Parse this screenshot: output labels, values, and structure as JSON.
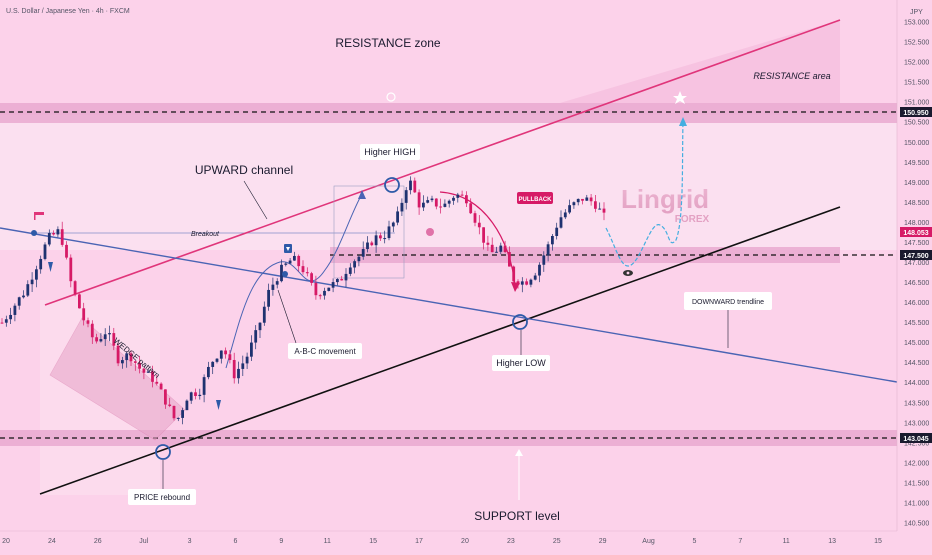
{
  "header": {
    "symbol_title": "U.S. Dollar / Japanese Yen · 4h · FXCM",
    "currency": "JPY"
  },
  "colors": {
    "background": "#fcd2ea",
    "upper_band": "#fbe4f1",
    "zone_band": "#e9a9d0",
    "resistance_line": "#e0357a",
    "support_line": "#111111",
    "trendline": "#4a64b4",
    "candle_up": "#1f3270",
    "candle_down": "#d61a66",
    "circle": "#2e5aa8",
    "projection": "#44aee0",
    "price_tag": "#1a1a2e",
    "current_price_tag": "#d61a66"
  },
  "annotations": {
    "resistance_zone": "RESISTANCE zone",
    "resistance_area": "RESISTANCE area",
    "upward_channel": "UPWARD channel",
    "breakout": "Breakout",
    "higher_high": "Higher HIGH",
    "pullback": "PULLBACK",
    "abc_movement": "A-B-C movement",
    "wedge_pattern": "WEDGE pattern",
    "downward_trendline": "DOWNWARD trendline",
    "higher_low": "Higher LOW",
    "price_rebound": "PRICE rebound",
    "support_level": "SUPPORT level",
    "watermark_main": "Lingrid",
    "watermark_sub": "FOREX"
  },
  "price_tags": [
    {
      "value": "150.950",
      "kind": "level"
    },
    {
      "value": "148.053",
      "kind": "current"
    },
    {
      "value": "147.500",
      "kind": "level"
    },
    {
      "value": "143.045",
      "kind": "level"
    }
  ],
  "chart_data": {
    "type": "line",
    "description_series": "USD/JPY 4h price path (approximate closes)",
    "x_ticks": [
      "20",
      "24",
      "26",
      "Jul",
      "3",
      "6",
      "9",
      "11",
      "15",
      "17",
      "20",
      "23",
      "25",
      "29",
      "Aug",
      "5",
      "7",
      "11",
      "13",
      "15"
    ],
    "y_ticks": [
      "153.000",
      "152.500",
      "152.000",
      "151.500",
      "151.000",
      "150.500",
      "150.000",
      "149.500",
      "149.000",
      "148.500",
      "148.000",
      "147.500",
      "147.000",
      "146.500",
      "146.000",
      "145.500",
      "145.000",
      "144.500",
      "144.000",
      "143.500",
      "143.000",
      "142.500",
      "142.000",
      "141.500",
      "141.000",
      "140.500"
    ],
    "ylim": [
      140.3,
      153.3
    ],
    "price_path": [
      {
        "x": 0,
        "y": 145.5
      },
      {
        "x": 2,
        "y": 146.3
      },
      {
        "x": 4,
        "y": 147.6
      },
      {
        "x": 5,
        "y": 147.8
      },
      {
        "x": 6,
        "y": 146.4
      },
      {
        "x": 7,
        "y": 145.6
      },
      {
        "x": 8,
        "y": 145.0
      },
      {
        "x": 9,
        "y": 145.3
      },
      {
        "x": 10,
        "y": 144.6
      },
      {
        "x": 11,
        "y": 144.7
      },
      {
        "x": 12,
        "y": 144.3
      },
      {
        "x": 13,
        "y": 144.1
      },
      {
        "x": 14,
        "y": 143.6
      },
      {
        "x": 15,
        "y": 143.0
      },
      {
        "x": 16,
        "y": 143.7
      },
      {
        "x": 17,
        "y": 143.8
      },
      {
        "x": 18,
        "y": 144.5
      },
      {
        "x": 19,
        "y": 144.9
      },
      {
        "x": 20,
        "y": 144.2
      },
      {
        "x": 21,
        "y": 144.6
      },
      {
        "x": 22,
        "y": 145.3
      },
      {
        "x": 23,
        "y": 146.3
      },
      {
        "x": 24,
        "y": 146.8
      },
      {
        "x": 25,
        "y": 147.1
      },
      {
        "x": 26,
        "y": 146.8
      },
      {
        "x": 27,
        "y": 146.2
      },
      {
        "x": 28,
        "y": 146.4
      },
      {
        "x": 29,
        "y": 146.5
      },
      {
        "x": 30,
        "y": 147.0
      },
      {
        "x": 31,
        "y": 147.2
      },
      {
        "x": 32,
        "y": 147.6
      },
      {
        "x": 33,
        "y": 147.7
      },
      {
        "x": 34,
        "y": 148.1
      },
      {
        "x": 35,
        "y": 149.1
      },
      {
        "x": 36,
        "y": 148.4
      },
      {
        "x": 37,
        "y": 148.5
      },
      {
        "x": 38,
        "y": 148.4
      },
      {
        "x": 39,
        "y": 148.7
      },
      {
        "x": 40,
        "y": 148.6
      },
      {
        "x": 41,
        "y": 147.9
      },
      {
        "x": 42,
        "y": 147.2
      },
      {
        "x": 43,
        "y": 147.4
      },
      {
        "x": 44,
        "y": 146.6
      },
      {
        "x": 45,
        "y": 146.5
      },
      {
        "x": 46,
        "y": 146.8
      },
      {
        "x": 47,
        "y": 147.4
      },
      {
        "x": 48,
        "y": 148.1
      },
      {
        "x": 49,
        "y": 148.4
      },
      {
        "x": 50,
        "y": 148.6
      },
      {
        "x": 51,
        "y": 148.5
      },
      {
        "x": 52,
        "y": 148.05
      }
    ],
    "levels": {
      "resistance_zone": 150.95,
      "key_level": 147.5,
      "support_zone": 143.045,
      "current": 148.053
    }
  }
}
